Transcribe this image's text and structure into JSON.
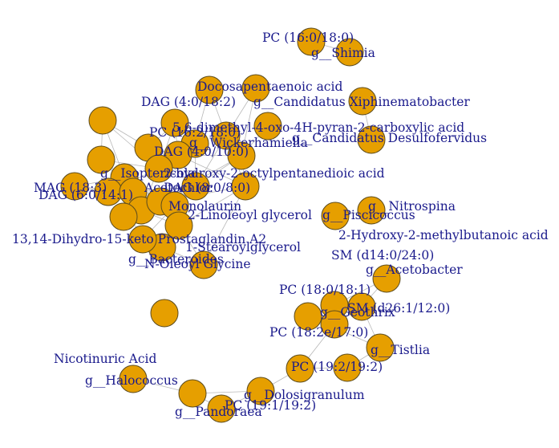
{
  "diagram": {
    "type": "network",
    "node_color": "#E69F00",
    "edge_color": "#B8B8B8",
    "label_color": "#1A1A8C",
    "labels": [
      "PC (16:0/18:0)",
      "g__Shimia",
      "Docosapentaenoic acid",
      "DAG (4:0/18:2)",
      "g__Candidatus Xiphinematobacter",
      "5,6-dimethyl-4-oxo-4H-pyran-2-carboxylic acid",
      "PC (16:2/18:0)",
      "g__Candidatus Desulfofervidus",
      "g__Wickerhamiella",
      "DAG (4:0/10:0)",
      "g__Isoptericola",
      "2-hydroxy-2-octylpentanedioic acid",
      "Acetochlor",
      "DAG (8:0/8:0)",
      "MAG (18:3)",
      "DAG (6:0/14:1)",
      "Monolaurin",
      "2-Linoleoyl glycerol",
      "g__Piscicoccus",
      "g__Nitrospina",
      "13,14-Dihydro-15-keto Prostaglandin A2",
      "2-Hydroxy-2-methylbutanoic acid",
      "1-Stearoylglycerol",
      "g__Bacteroides",
      "N-Oleoyl Glycine",
      "SM (d14:0/24:0)",
      "g__Acetobacter",
      "PC (18:0/18:1)",
      "g__Geothrix",
      "SM (d26:1/12:0)",
      "PC (18:2e/17:0)",
      "g__Tistlia",
      "Nicotinuric Acid",
      "PC (19:2/19:2)",
      "g__Halococcus",
      "g__Dolosigranulum",
      "g__Pandoraea",
      "PC (19:1/19:2)"
    ]
  }
}
